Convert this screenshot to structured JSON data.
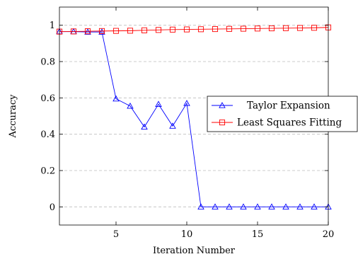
{
  "chart_data": {
    "type": "line",
    "xlabel": "Iteration Number",
    "ylabel": "Accuracy",
    "xlim": [
      1,
      20
    ],
    "ylim": [
      -0.1,
      1.1
    ],
    "xticks": [
      5,
      10,
      15,
      20
    ],
    "yticks": [
      0,
      0.2,
      0.4,
      0.6,
      0.8,
      1
    ],
    "ytick_labels": [
      "0",
      "0.2",
      "0.4",
      "0.6",
      "0.8",
      "1"
    ],
    "grid": "horizontal-dashed",
    "legend_position": "right",
    "series": [
      {
        "name": "Taylor Expansion",
        "color": "#0000ff",
        "marker": "triangle",
        "x": [
          1,
          2,
          3,
          4,
          5,
          6,
          7,
          8,
          9,
          10,
          11,
          12,
          13,
          14,
          15,
          16,
          17,
          18,
          19,
          20
        ],
        "y": [
          0.965,
          0.965,
          0.963,
          0.963,
          0.595,
          0.555,
          0.44,
          0.565,
          0.445,
          0.57,
          0,
          0,
          0,
          0,
          0,
          0,
          0,
          0,
          0,
          0
        ]
      },
      {
        "name": "Least Squares Fitting",
        "color": "#ff0000",
        "marker": "square",
        "x": [
          1,
          2,
          3,
          4,
          5,
          6,
          7,
          8,
          9,
          10,
          11,
          12,
          13,
          14,
          15,
          16,
          17,
          18,
          19,
          20
        ],
        "y": [
          0.965,
          0.966,
          0.967,
          0.968,
          0.969,
          0.97,
          0.972,
          0.974,
          0.976,
          0.977,
          0.978,
          0.979,
          0.98,
          0.981,
          0.982,
          0.983,
          0.984,
          0.985,
          0.986,
          0.988
        ]
      }
    ]
  }
}
